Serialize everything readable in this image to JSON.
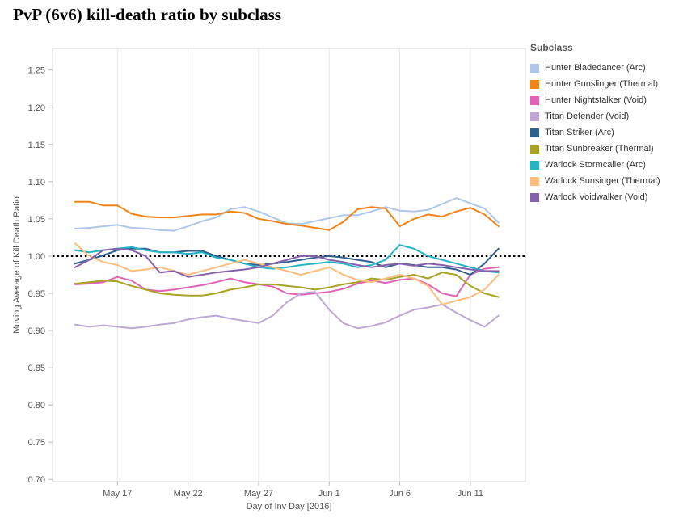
{
  "page": {
    "title": "PvP (6v6) kill-death ratio by subclass"
  },
  "chart_data": {
    "type": "line",
    "title": "PvP (6v6) kill-death ratio by subclass",
    "xlabel": "Day of Inv Day [2016]",
    "ylabel": "Moving Average of Kill Death Ratio",
    "legend_title": "Subclass",
    "legend_position": "right",
    "grid": "vertical-only",
    "ylim": [
      0.697,
      1.279
    ],
    "x_index_lim": [
      -1.6,
      31.9
    ],
    "y_ticks": [
      0.7,
      0.75,
      0.8,
      0.85,
      0.9,
      0.95,
      1.0,
      1.05,
      1.1,
      1.15,
      1.2,
      1.25
    ],
    "x_tick_indices": [
      3,
      8,
      13,
      18,
      23,
      28
    ],
    "x_tick_labels": [
      "May 17",
      "May 22",
      "May 27",
      "Jun 1",
      "Jun 6",
      "Jun 11"
    ],
    "reference_line": {
      "y": 1.0,
      "style": "dotted",
      "color": "#000000"
    },
    "x_dates": [
      "May 14",
      "May 15",
      "May 16",
      "May 17",
      "May 18",
      "May 19",
      "May 20",
      "May 21",
      "May 22",
      "May 23",
      "May 24",
      "May 25",
      "May 26",
      "May 27",
      "May 28",
      "May 29",
      "May 30",
      "May 31",
      "Jun 1",
      "Jun 2",
      "Jun 3",
      "Jun 4",
      "Jun 5",
      "Jun 6",
      "Jun 7",
      "Jun 8",
      "Jun 9",
      "Jun 10",
      "Jun 11",
      "Jun 12",
      "Jun 13"
    ],
    "series": [
      {
        "name": "Hunter Bladedancer (Arc)",
        "color": "#aec7e8",
        "values": [
          1.037,
          1.038,
          1.04,
          1.042,
          1.038,
          1.037,
          1.035,
          1.034,
          1.04,
          1.047,
          1.052,
          1.063,
          1.066,
          1.06,
          1.052,
          1.044,
          1.043,
          1.047,
          1.051,
          1.055,
          1.055,
          1.06,
          1.066,
          1.061,
          1.06,
          1.062,
          1.07,
          1.078,
          1.071,
          1.064,
          1.045
        ]
      },
      {
        "name": "Hunter Gunslinger (Thermal)",
        "color": "#f18318",
        "values": [
          1.073,
          1.073,
          1.068,
          1.068,
          1.057,
          1.053,
          1.052,
          1.052,
          1.054,
          1.056,
          1.056,
          1.06,
          1.058,
          1.05,
          1.047,
          1.043,
          1.041,
          1.038,
          1.035,
          1.046,
          1.063,
          1.066,
          1.064,
          1.04,
          1.05,
          1.056,
          1.053,
          1.06,
          1.065,
          1.056,
          1.04
        ]
      },
      {
        "name": "Hunter Nightstalker (Void)",
        "color": "#e063b5",
        "values": [
          0.962,
          0.963,
          0.965,
          0.972,
          0.967,
          0.955,
          0.953,
          0.955,
          0.958,
          0.961,
          0.965,
          0.97,
          0.965,
          0.962,
          0.959,
          0.95,
          0.948,
          0.95,
          0.952,
          0.956,
          0.963,
          0.967,
          0.964,
          0.968,
          0.97,
          0.962,
          0.95,
          0.946,
          0.975,
          0.983,
          0.985
        ]
      },
      {
        "name": "Titan Defender (Void)",
        "color": "#bda7d4",
        "values": [
          0.908,
          0.905,
          0.907,
          0.905,
          0.903,
          0.905,
          0.908,
          0.91,
          0.915,
          0.918,
          0.92,
          0.916,
          0.913,
          0.91,
          0.92,
          0.938,
          0.95,
          0.952,
          0.928,
          0.91,
          0.903,
          0.906,
          0.911,
          0.92,
          0.928,
          0.931,
          0.935,
          0.924,
          0.914,
          0.905,
          0.92
        ]
      },
      {
        "name": "Titan Striker (Arc)",
        "color": "#2e5f8f",
        "values": [
          0.99,
          0.995,
          1.001,
          1.008,
          1.01,
          1.01,
          1.005,
          1.005,
          1.007,
          1.007,
          1.0,
          0.995,
          0.99,
          0.988,
          0.99,
          0.992,
          0.995,
          0.998,
          1.0,
          0.998,
          0.995,
          0.992,
          0.985,
          0.99,
          0.988,
          0.985,
          0.985,
          0.982,
          0.975,
          0.99,
          1.01
        ]
      },
      {
        "name": "Titan Sunbreaker (Thermal)",
        "color": "#a6a326",
        "values": [
          0.963,
          0.965,
          0.967,
          0.966,
          0.96,
          0.955,
          0.95,
          0.948,
          0.947,
          0.947,
          0.95,
          0.955,
          0.958,
          0.962,
          0.962,
          0.96,
          0.958,
          0.955,
          0.958,
          0.962,
          0.965,
          0.97,
          0.968,
          0.972,
          0.975,
          0.97,
          0.978,
          0.975,
          0.96,
          0.95,
          0.945
        ]
      },
      {
        "name": "Warlock Stormcaller (Arc)",
        "color": "#26b3c4",
        "values": [
          1.008,
          1.005,
          1.008,
          1.01,
          1.012,
          1.008,
          1.005,
          1.005,
          1.003,
          1.005,
          0.998,
          0.995,
          0.99,
          0.985,
          0.983,
          0.985,
          0.988,
          0.99,
          0.992,
          0.99,
          0.985,
          0.988,
          0.995,
          1.015,
          1.01,
          1.0,
          0.995,
          0.99,
          0.985,
          0.98,
          0.978
        ]
      },
      {
        "name": "Warlock Sunsinger (Thermal)",
        "color": "#fdbd7e",
        "values": [
          1.017,
          1.0,
          0.992,
          0.988,
          0.98,
          0.982,
          0.985,
          0.98,
          0.975,
          0.98,
          0.985,
          0.99,
          0.995,
          0.99,
          0.985,
          0.98,
          0.975,
          0.98,
          0.985,
          0.975,
          0.968,
          0.965,
          0.97,
          0.975,
          0.97,
          0.96,
          0.935,
          0.94,
          0.945,
          0.955,
          0.975
        ]
      },
      {
        "name": "Warlock Voidwalker (Void)",
        "color": "#8661ab",
        "values": [
          0.985,
          0.995,
          1.008,
          1.01,
          1.008,
          1.0,
          0.978,
          0.98,
          0.972,
          0.975,
          0.978,
          0.98,
          0.982,
          0.985,
          0.99,
          0.995,
          1.0,
          1.0,
          0.995,
          0.992,
          0.988,
          0.985,
          0.988,
          0.99,
          0.987,
          0.99,
          0.988,
          0.985,
          0.982,
          0.98,
          0.98
        ]
      }
    ]
  }
}
